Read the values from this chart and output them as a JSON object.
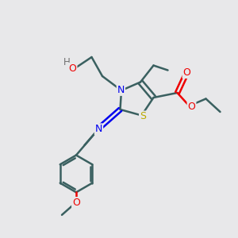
{
  "bg_color": "#e8e8ea",
  "atom_colors": {
    "C": "#3a6060",
    "N": "#0000ee",
    "O": "#ee0000",
    "S": "#bbaa00",
    "H": "#707070"
  },
  "bond_color": "#3a6060",
  "bond_width": 1.8,
  "figsize": [
    3.0,
    3.0
  ],
  "dpi": 100,
  "xlim": [
    0,
    10
  ],
  "ylim": [
    0,
    10
  ]
}
